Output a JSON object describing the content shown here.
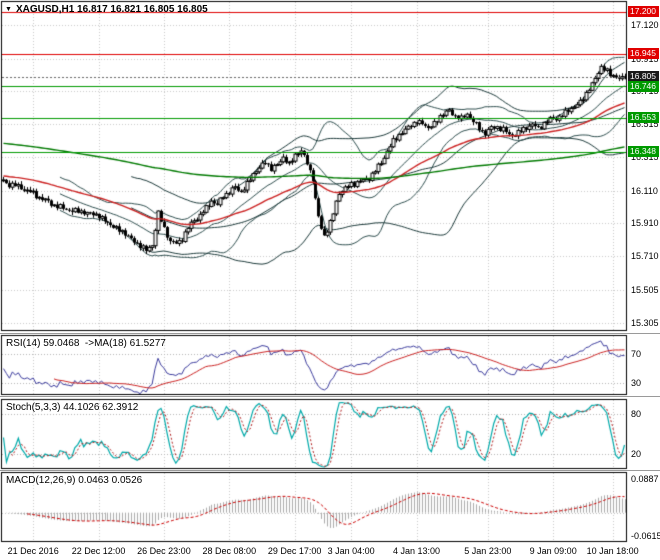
{
  "header": {
    "symbol_line": "XAGUSD,H1 16.817 16.821 16.805 16.805"
  },
  "panels": {
    "rsi_label": "RSI(14) 59.0468  ->MA(18) 61.5277",
    "stoch_label": "Stoch(5,3,3) 44.1026 62.3912",
    "macd_label": "MACD(12,26,9) 0.0463 0.0526"
  },
  "colors": {
    "background": "#ffffff",
    "grid": "#c9c9c9",
    "border": "#000000",
    "candle": "#000000",
    "resistance_line": "#e00000",
    "support_line": "#009a00",
    "current_price_badge": "#1a1a1a",
    "rsi_line": "#3C3C9E",
    "rsi_ma_line": "#CC2222",
    "stoch_k_line": "#00AAAA",
    "stoch_d_line": "#B22222",
    "macd_histogram": "#ABABAB",
    "macd_signal": "#CC0000"
  },
  "chart_data": {
    "type": "candlestick",
    "symbol": "XAGUSD",
    "timeframe": "H1",
    "quote": {
      "open": 16.817,
      "high": 16.821,
      "low": 16.805,
      "close": 16.805
    },
    "current_price": 16.805,
    "price_range": [
      15.26,
      17.26
    ],
    "price_axis_ticks": [
      17.12,
      16.915,
      16.715,
      16.515,
      16.315,
      16.11,
      15.91,
      15.71,
      15.505,
      15.305
    ],
    "h_lines": [
      {
        "price": 17.2,
        "color": "#e00000"
      },
      {
        "price": 16.945,
        "color": "#e00000"
      },
      {
        "price": 16.746,
        "color": "#009a00"
      },
      {
        "price": 16.553,
        "color": "#009a00"
      },
      {
        "price": 16.348,
        "color": "#009a00"
      }
    ],
    "price_badges": [
      {
        "value": "17.200",
        "color": "#e00000"
      },
      {
        "value": "16.945",
        "color": "#e00000"
      },
      {
        "value": "16.805",
        "color": "#1a1a1a"
      },
      {
        "value": "16.746",
        "color": "#009a00"
      },
      {
        "value": "16.553",
        "color": "#009a00"
      },
      {
        "value": "16.348",
        "color": "#009a00"
      }
    ],
    "closes": [
      16.17,
      16.155,
      16.148,
      16.145,
      16.14,
      16.132,
      16.128,
      16.118,
      16.11,
      16.1,
      16.09,
      16.08,
      16.07,
      16.06,
      16.05,
      16.04,
      16.03,
      16.022,
      16.015,
      16.008,
      16.0,
      15.996,
      15.992,
      15.989,
      15.985,
      15.982,
      15.98,
      15.978,
      15.975,
      15.97,
      15.965,
      15.96,
      15.955,
      15.941,
      15.927,
      15.913,
      15.9,
      15.89,
      15.88,
      15.87,
      15.86,
      15.845,
      15.83,
      15.815,
      15.8,
      15.786,
      15.772,
      15.758,
      15.745,
      15.762,
      15.78,
      15.875,
      15.97,
      15.925,
      15.88,
      15.84,
      15.8,
      15.792,
      15.785,
      15.8,
      15.82,
      15.85,
      15.88,
      15.905,
      15.93,
      15.945,
      15.96,
      15.98,
      16.0,
      16.025,
      16.05,
      16.035,
      16.02,
      16.05,
      16.08,
      16.09,
      16.1,
      16.115,
      16.13,
      16.115,
      16.1,
      16.125,
      16.15,
      16.18,
      16.21,
      16.23,
      16.25,
      16.268,
      16.285,
      16.262,
      16.24,
      16.255,
      16.27,
      16.29,
      16.31,
      16.29,
      16.27,
      16.3,
      16.33,
      16.34,
      16.35,
      16.315,
      16.28,
      16.23,
      16.18,
      16.05,
      15.95,
      15.88,
      15.84,
      15.87,
      15.91,
      15.97,
      16.04,
      16.1,
      16.11,
      16.12,
      16.135,
      16.15,
      16.155,
      16.16,
      16.165,
      16.17,
      16.18,
      16.19,
      16.21,
      16.23,
      16.255,
      16.28,
      16.315,
      16.35,
      16.38,
      16.41,
      16.43,
      16.45,
      16.465,
      16.48,
      16.495,
      16.51,
      16.52,
      16.53,
      16.525,
      16.52,
      16.505,
      16.49,
      16.505,
      16.52,
      16.54,
      16.56,
      16.575,
      16.59,
      16.6,
      16.58,
      16.56,
      16.555,
      16.55,
      16.565,
      16.58,
      16.555,
      16.53,
      16.51,
      16.49,
      16.475,
      16.46,
      16.475,
      16.49,
      16.495,
      16.5,
      16.49,
      16.48,
      16.465,
      16.45,
      16.452,
      16.455,
      16.462,
      16.47,
      16.485,
      16.5,
      16.505,
      16.51,
      16.5,
      16.49,
      16.505,
      16.52,
      16.532,
      16.545,
      16.548,
      16.55,
      16.56,
      16.57,
      16.585,
      16.6,
      16.61,
      16.62,
      16.635,
      16.65,
      16.675,
      16.7,
      16.73,
      16.76,
      16.795,
      16.83,
      16.86,
      16.85,
      16.84,
      16.82,
      16.81,
      16.8,
      16.79,
      16.797,
      16.805
    ],
    "time_labels": [
      {
        "label": "21 Dec 2016",
        "index": 10
      },
      {
        "label": "22 Dec 12:00",
        "index": 32
      },
      {
        "label": "26 Dec 23:00",
        "index": 54
      },
      {
        "label": "28 Dec 08:00",
        "index": 76
      },
      {
        "label": "29 Dec 17:00",
        "index": 98
      },
      {
        "label": "3 Jan 04:00",
        "index": 117
      },
      {
        "label": "4 Jan 13:00",
        "index": 139
      },
      {
        "label": "5 Jan 23:00",
        "index": 163
      },
      {
        "label": "9 Jan 09:00",
        "index": 185
      },
      {
        "label": "10 Jan 18:00",
        "index": 205
      }
    ],
    "moving_averages": [
      {
        "name": "fast-ma",
        "color": "#CC2222",
        "period": 48,
        "init": 16.2
      },
      {
        "name": "slow-ma",
        "color": "#007A00",
        "period": 250,
        "init": 16.4
      }
    ],
    "bollinger": [
      {
        "period": 20,
        "deviation": 2,
        "color": "#2F4F4F"
      },
      {
        "period": 44,
        "deviation": 2,
        "color": "#1C3A3A"
      }
    ],
    "indicators": {
      "rsi": {
        "period": 14,
        "ma_period": 18,
        "value": 59.0468,
        "ma_value": 61.5277,
        "levels": [
          70,
          30
        ],
        "axis_ticks": [
          70,
          30
        ],
        "display_range": [
          15,
          95
        ]
      },
      "stoch": {
        "k": 5,
        "d": 3,
        "slowing": 3,
        "value": 44.1026,
        "signal": 62.3912,
        "levels": [
          80,
          20
        ],
        "axis_ticks": [
          80,
          20
        ],
        "display_range": [
          0,
          100
        ]
      },
      "macd": {
        "fast": 12,
        "slow": 26,
        "signal_period": 9,
        "value": 0.0463,
        "signal_value": 0.0526,
        "axis_ticks": [
          0.0887,
          -0.0615
        ],
        "display_range": [
          -0.075,
          0.105
        ]
      }
    }
  }
}
